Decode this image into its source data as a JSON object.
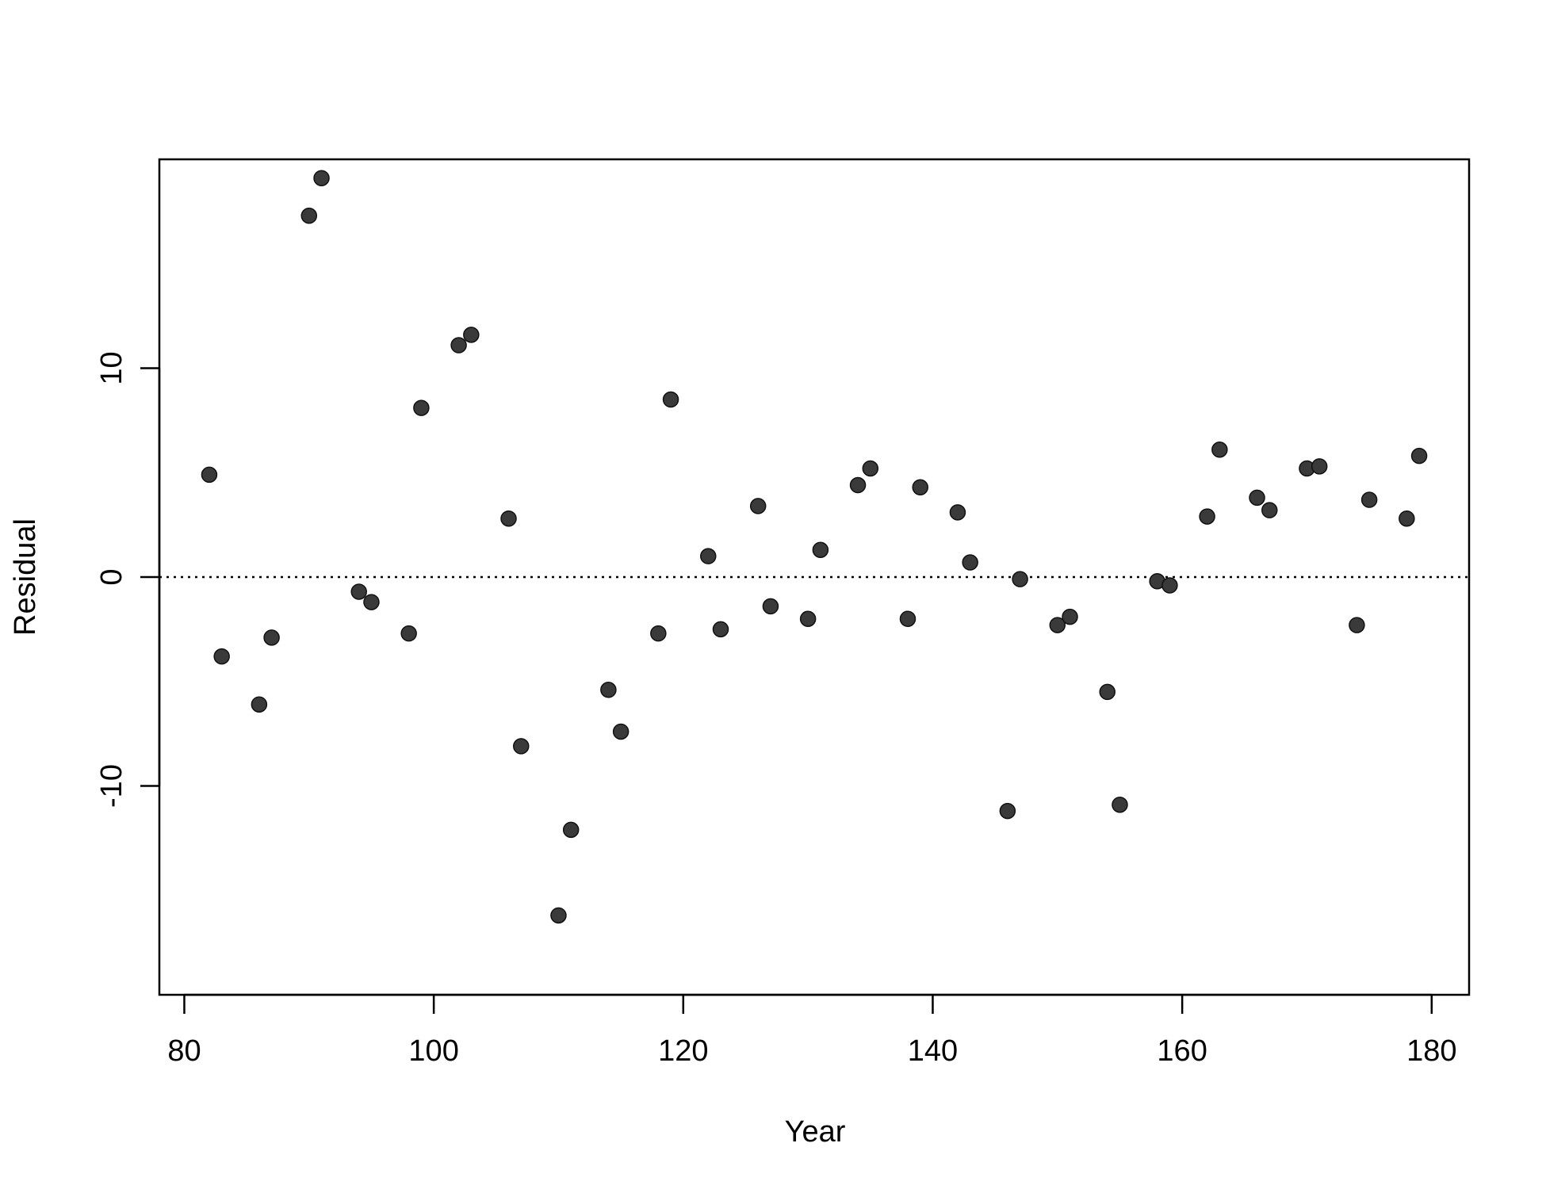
{
  "chart_data": {
    "type": "scatter",
    "title": "",
    "xlabel": "Year",
    "ylabel": "Residual",
    "xlim": [
      78,
      183
    ],
    "ylim": [
      -20,
      20
    ],
    "x_ticks": [
      80,
      100,
      120,
      140,
      160,
      180
    ],
    "y_ticks": [
      -10,
      0,
      10
    ],
    "x_tick_labels": [
      "80",
      "100",
      "120",
      "140",
      "160",
      "180"
    ],
    "y_tick_labels": [
      "-10",
      "0",
      "10"
    ],
    "reference_line": {
      "y": 0,
      "style": "dotted"
    },
    "grid": false,
    "legend": "none",
    "point_color": "#3a3a3a",
    "x": [
      82,
      83,
      86,
      87,
      90,
      91,
      94,
      95,
      98,
      99,
      102,
      103,
      106,
      107,
      110,
      111,
      114,
      115,
      118,
      119,
      122,
      123,
      126,
      127,
      130,
      131,
      134,
      135,
      138,
      139,
      142,
      143,
      146,
      147,
      150,
      151,
      154,
      155,
      158,
      159,
      162,
      163,
      166,
      167,
      170,
      171,
      174,
      175,
      178,
      179
    ],
    "y": [
      4.9,
      -3.8,
      -6.1,
      -2.9,
      17.3,
      19.1,
      -0.7,
      -1.2,
      -2.7,
      8.1,
      11.1,
      11.6,
      2.8,
      -8.1,
      -16.2,
      -12.1,
      -5.4,
      -7.4,
      -2.7,
      8.5,
      1.0,
      -2.5,
      3.4,
      -1.4,
      -2.0,
      1.3,
      4.4,
      5.2,
      -2.0,
      4.3,
      3.1,
      0.7,
      -11.2,
      -0.1,
      -2.3,
      -1.9,
      -5.5,
      -10.9,
      -0.2,
      -0.4,
      2.9,
      6.1,
      3.8,
      3.2,
      5.2,
      5.3,
      -2.3,
      3.7,
      2.8,
      5.8
    ]
  }
}
